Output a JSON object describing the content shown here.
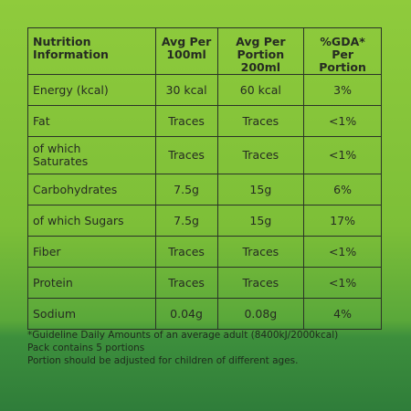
{
  "table": {
    "header": [
      "Nutrition\nInformation",
      "Avg Per\n100ml",
      "Avg Per\nPortion 200ml",
      "%GDA* Per\nPortion"
    ],
    "rows": [
      [
        "Energy (kcal)",
        "30 kcal",
        "60 kcal",
        "3%"
      ],
      [
        "Fat",
        "Traces",
        "Traces",
        "<1%"
      ],
      [
        "of which\nSaturates",
        "Traces",
        "Traces",
        "<1%"
      ],
      [
        "Carbohydrates",
        "7.5g",
        "15g",
        "6%"
      ],
      [
        "of which Sugars",
        "7.5g",
        "15g",
        "17%"
      ],
      [
        "Fiber",
        "Traces",
        "Traces",
        "<1%"
      ],
      [
        "Protein",
        "Traces",
        "Traces",
        "<1%"
      ],
      [
        "Sodium",
        "0.04g",
        "0.08g",
        "4%"
      ]
    ]
  },
  "footnotes": [
    "*Guideline Daily Amounts of an average adult (8400kJ/2000kcal)",
    "Pack contains 5 portions",
    "Portion should be adjusted for children of different ages."
  ]
}
